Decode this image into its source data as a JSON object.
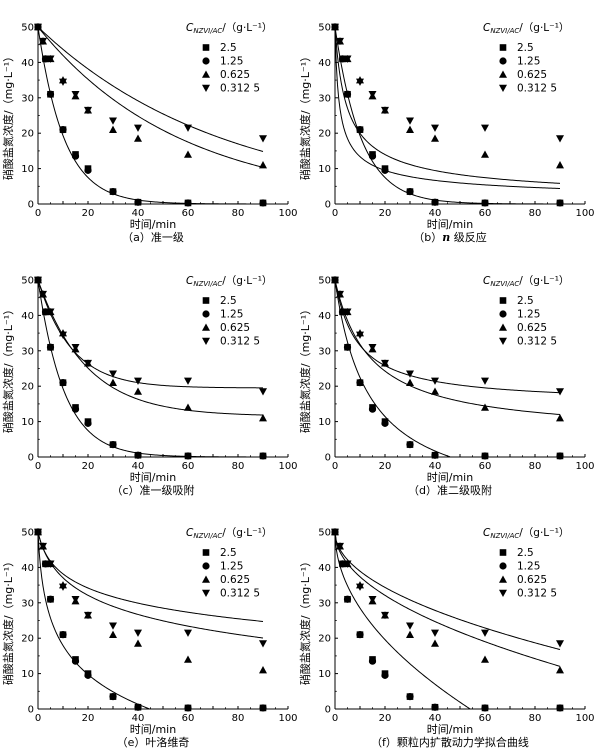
{
  "figure": {
    "x_label": "时间/min",
    "y_label": "硝酸盐氮浓度/（mg·L⁻¹）",
    "legend_title": "C",
    "legend_title_sub": "NZVI/AC",
    "legend_title_unit": "/（g·L⁻¹）"
  },
  "chart_data": [
    {
      "type": "scatter",
      "caption": "（a）准一级",
      "xlim": [
        0,
        100
      ],
      "ylim": [
        0,
        50
      ],
      "xticks": [
        0,
        10,
        20,
        30,
        40,
        50,
        60,
        70,
        80,
        90,
        100
      ],
      "yticks": [
        0,
        10,
        20,
        30,
        40,
        50
      ],
      "legend_position": "top-right",
      "series": [
        {
          "name": "2.5",
          "marker": "square",
          "x": [
            0,
            3,
            5,
            10,
            15,
            20,
            30,
            40,
            60,
            90
          ],
          "y": [
            50,
            41,
            31,
            21,
            14,
            10,
            3.5,
            0.5,
            0.3,
            0.3
          ]
        },
        {
          "name": "1.25",
          "marker": "circle",
          "x": [
            0,
            3,
            5,
            10,
            15,
            20,
            30,
            40,
            60,
            90
          ],
          "y": [
            50,
            41,
            31,
            21,
            13.5,
            9.5,
            3.5,
            0.5,
            0.3,
            0.3
          ]
        },
        {
          "name": "0.625",
          "marker": "triangle-up",
          "x": [
            0,
            2,
            5,
            10,
            15,
            20,
            30,
            40,
            60,
            90
          ],
          "y": [
            50,
            46,
            41,
            35,
            30.5,
            26.5,
            21,
            18.5,
            14,
            11
          ]
        },
        {
          "name": "0.312 5",
          "marker": "triangle-down",
          "x": [
            0,
            2,
            5,
            10,
            15,
            20,
            30,
            40,
            60,
            90
          ],
          "y": [
            50,
            46,
            41,
            34.5,
            31,
            26.5,
            23.5,
            21.5,
            21.5,
            18.5
          ]
        }
      ],
      "fit_curves": [
        {
          "series": "2.5",
          "model": "exp",
          "params": [
            50,
            0.095
          ]
        },
        {
          "series": "0.625",
          "model": "exp",
          "params": [
            50,
            0.0135
          ]
        },
        {
          "series": "0.312 5",
          "model": "exp",
          "params": [
            50,
            0.0175
          ]
        }
      ]
    },
    {
      "type": "scatter",
      "caption_prefix": "（b）",
      "caption_italic": "n",
      "caption_suffix": " 级反应",
      "xlim": [
        0,
        100
      ],
      "ylim": [
        0,
        50
      ],
      "xticks": [
        0,
        10,
        20,
        30,
        40,
        50,
        60,
        70,
        80,
        90,
        100
      ],
      "yticks": [
        0,
        10,
        20,
        30,
        40,
        50
      ],
      "legend_position": "top-right",
      "series": [
        {
          "name": "2.5",
          "marker": "square",
          "x": [
            0,
            3,
            5,
            10,
            15,
            20,
            30,
            40,
            60,
            90
          ],
          "y": [
            50,
            41,
            31,
            21,
            14,
            10,
            3.5,
            0.5,
            0.3,
            0.3
          ]
        },
        {
          "name": "1.25",
          "marker": "circle",
          "x": [
            0,
            3,
            5,
            10,
            15,
            20,
            30,
            40,
            60,
            90
          ],
          "y": [
            50,
            41,
            31,
            21,
            13.5,
            9.5,
            3.5,
            0.5,
            0.3,
            0.3
          ]
        },
        {
          "name": "0.625",
          "marker": "triangle-up",
          "x": [
            0,
            2,
            5,
            10,
            15,
            20,
            30,
            40,
            60,
            90
          ],
          "y": [
            50,
            46,
            41,
            35,
            30.5,
            26.5,
            21,
            18.5,
            14,
            11
          ]
        },
        {
          "name": "0.312 5",
          "marker": "triangle-down",
          "x": [
            0,
            2,
            5,
            10,
            15,
            20,
            30,
            40,
            60,
            90
          ],
          "y": [
            50,
            46,
            41,
            34.5,
            31,
            26.5,
            23.5,
            21.5,
            21.5,
            18.5
          ]
        }
      ],
      "fit_curves": [
        {
          "series": "2.5",
          "model": "exp",
          "params": [
            50,
            0.095
          ]
        },
        {
          "series": "0.625",
          "model": "nth",
          "params": [
            50,
            0.0004,
            2.6
          ]
        },
        {
          "series": "0.312 5",
          "model": "nth",
          "params": [
            50,
            0.00035,
            2.9
          ]
        }
      ]
    },
    {
      "type": "scatter",
      "caption": "（c）准一级吸附",
      "xlim": [
        0,
        100
      ],
      "ylim": [
        0,
        50
      ],
      "xticks": [
        0,
        10,
        20,
        30,
        40,
        50,
        60,
        70,
        80,
        90,
        100
      ],
      "yticks": [
        0,
        10,
        20,
        30,
        40,
        50
      ],
      "legend_position": "top-right",
      "series": [
        {
          "name": "2.5",
          "marker": "square",
          "x": [
            0,
            3,
            5,
            10,
            15,
            20,
            30,
            40,
            60,
            90
          ],
          "y": [
            50,
            41,
            31,
            21,
            14,
            10,
            3.5,
            0.5,
            0.3,
            0.3
          ]
        },
        {
          "name": "1.25",
          "marker": "circle",
          "x": [
            0,
            3,
            5,
            10,
            15,
            20,
            30,
            40,
            60,
            90
          ],
          "y": [
            50,
            41,
            31,
            21,
            13.5,
            9.5,
            3.5,
            0.5,
            0.3,
            0.3
          ]
        },
        {
          "name": "0.625",
          "marker": "triangle-up",
          "x": [
            0,
            2,
            5,
            10,
            15,
            20,
            30,
            40,
            60,
            90
          ],
          "y": [
            50,
            46,
            41,
            35,
            30.5,
            26.5,
            21,
            18.5,
            14,
            11
          ]
        },
        {
          "name": "0.312 5",
          "marker": "triangle-down",
          "x": [
            0,
            2,
            5,
            10,
            15,
            20,
            30,
            40,
            60,
            90
          ],
          "y": [
            50,
            46,
            41,
            34.5,
            31,
            26.5,
            23.5,
            21.5,
            21.5,
            18.5
          ]
        }
      ],
      "fit_curves": [
        {
          "series": "2.5",
          "model": "pfo",
          "params": [
            50,
            0,
            0.095
          ]
        },
        {
          "series": "0.625",
          "model": "pfo",
          "params": [
            50,
            11.5,
            0.052
          ]
        },
        {
          "series": "0.312 5",
          "model": "pfo",
          "params": [
            50,
            19.5,
            0.075
          ]
        }
      ]
    },
    {
      "type": "scatter",
      "caption": "（d）准二级吸附",
      "xlim": [
        0,
        100
      ],
      "ylim": [
        0,
        50
      ],
      "xticks": [
        0,
        10,
        20,
        30,
        40,
        50,
        60,
        70,
        80,
        90,
        100
      ],
      "yticks": [
        0,
        10,
        20,
        30,
        40,
        50
      ],
      "legend_position": "top-right",
      "series": [
        {
          "name": "2.5",
          "marker": "square",
          "x": [
            0,
            3,
            5,
            10,
            15,
            20,
            30,
            40,
            60,
            90
          ],
          "y": [
            50,
            41,
            31,
            21,
            14,
            10,
            3.5,
            0.5,
            0.3,
            0.3
          ]
        },
        {
          "name": "1.25",
          "marker": "circle",
          "x": [
            0,
            3,
            5,
            10,
            15,
            20,
            30,
            40,
            60,
            90
          ],
          "y": [
            50,
            41,
            31,
            21,
            13.5,
            9.5,
            3.5,
            0.5,
            0.3,
            0.3
          ]
        },
        {
          "name": "0.625",
          "marker": "triangle-up",
          "x": [
            0,
            2,
            5,
            10,
            15,
            20,
            30,
            40,
            60,
            90
          ],
          "y": [
            50,
            46,
            41,
            35,
            30.5,
            26.5,
            21,
            18.5,
            14,
            11
          ]
        },
        {
          "name": "0.312 5",
          "marker": "triangle-down",
          "x": [
            0,
            2,
            5,
            10,
            15,
            20,
            30,
            40,
            60,
            90
          ],
          "y": [
            50,
            46,
            41,
            34.5,
            31,
            26.5,
            23.5,
            21.5,
            21.5,
            18.5
          ]
        }
      ],
      "fit_curves": [
        {
          "series": "2.5",
          "model": "pso",
          "params": [
            50,
            60,
            0.0013,
            -5
          ]
        },
        {
          "series": "0.625",
          "model": "pso",
          "params": [
            50,
            44,
            0.0016,
            0
          ]
        },
        {
          "series": "0.312 5",
          "model": "pso",
          "params": [
            50,
            35,
            0.0032,
            0
          ]
        }
      ]
    },
    {
      "type": "scatter",
      "caption": "（e）叶洛维奇",
      "xlim": [
        0,
        100
      ],
      "ylim": [
        0,
        50
      ],
      "xticks": [
        0,
        10,
        20,
        30,
        40,
        50,
        60,
        70,
        80,
        90,
        100
      ],
      "yticks": [
        0,
        10,
        20,
        30,
        40,
        50
      ],
      "legend_position": "top-right",
      "series": [
        {
          "name": "2.5",
          "marker": "square",
          "x": [
            0,
            3,
            5,
            10,
            15,
            20,
            30,
            40,
            60,
            90
          ],
          "y": [
            50,
            41,
            31,
            21,
            14,
            10,
            3.5,
            0.5,
            0.3,
            0.3
          ]
        },
        {
          "name": "1.25",
          "marker": "circle",
          "x": [
            0,
            3,
            5,
            10,
            15,
            20,
            30,
            40,
            60,
            90
          ],
          "y": [
            50,
            41,
            31,
            21,
            13.5,
            9.5,
            3.5,
            0.5,
            0.3,
            0.3
          ]
        },
        {
          "name": "0.625",
          "marker": "triangle-up",
          "x": [
            0,
            2,
            5,
            10,
            15,
            20,
            30,
            40,
            60,
            90
          ],
          "y": [
            50,
            46,
            41,
            35,
            30.5,
            26.5,
            21,
            18.5,
            14,
            11
          ]
        },
        {
          "name": "0.312 5",
          "marker": "triangle-down",
          "x": [
            0,
            2,
            5,
            10,
            15,
            20,
            30,
            40,
            60,
            90
          ],
          "y": [
            50,
            46,
            41,
            34.5,
            31,
            26.5,
            23.5,
            21.5,
            21.5,
            18.5
          ]
        }
      ],
      "fit_curves": [
        {
          "series": "2.5",
          "model": "elovich",
          "params": [
            50,
            12.5,
            1.2
          ]
        },
        {
          "series": "0.625",
          "model": "elovich",
          "params": [
            50,
            8.6,
            0.35
          ]
        },
        {
          "series": "0.312 5",
          "model": "elovich",
          "params": [
            50,
            6.6,
            0.5
          ]
        }
      ]
    },
    {
      "type": "scatter",
      "caption": "（f）颗粒内扩散动力学拟合曲线",
      "xlim": [
        0,
        100
      ],
      "ylim": [
        0,
        50
      ],
      "xticks": [
        0,
        10,
        20,
        30,
        40,
        50,
        60,
        70,
        80,
        90,
        100
      ],
      "yticks": [
        0,
        10,
        20,
        30,
        40,
        50
      ],
      "legend_position": "top-right",
      "series": [
        {
          "name": "2.5",
          "marker": "square",
          "x": [
            0,
            3,
            5,
            10,
            15,
            20,
            30,
            40,
            60,
            90
          ],
          "y": [
            50,
            41,
            31,
            21,
            14,
            10,
            3.5,
            0.5,
            0.3,
            0.3
          ]
        },
        {
          "name": "1.25",
          "marker": "circle",
          "x": [
            0,
            3,
            5,
            10,
            15,
            20,
            30,
            40,
            60,
            90
          ],
          "y": [
            50,
            41,
            31,
            21,
            13.5,
            9.5,
            3.5,
            0.5,
            0.3,
            0.3
          ]
        },
        {
          "name": "0.625",
          "marker": "triangle-up",
          "x": [
            0,
            2,
            5,
            10,
            15,
            20,
            30,
            40,
            60,
            90
          ],
          "y": [
            50,
            46,
            41,
            35,
            30.5,
            26.5,
            21,
            18.5,
            14,
            11
          ]
        },
        {
          "name": "0.312 5",
          "marker": "triangle-down",
          "x": [
            0,
            2,
            5,
            10,
            15,
            20,
            30,
            40,
            60,
            90
          ],
          "y": [
            50,
            46,
            41,
            34.5,
            31,
            26.5,
            23.5,
            21.5,
            21.5,
            18.5
          ]
        }
      ],
      "fit_curves": [
        {
          "series": "2.5",
          "model": "ipd",
          "params": [
            50,
            6.8
          ]
        },
        {
          "series": "0.625",
          "model": "ipd",
          "params": [
            50,
            4.0
          ]
        },
        {
          "series": "0.312 5",
          "model": "ipd",
          "params": [
            50,
            3.5
          ]
        }
      ]
    }
  ]
}
